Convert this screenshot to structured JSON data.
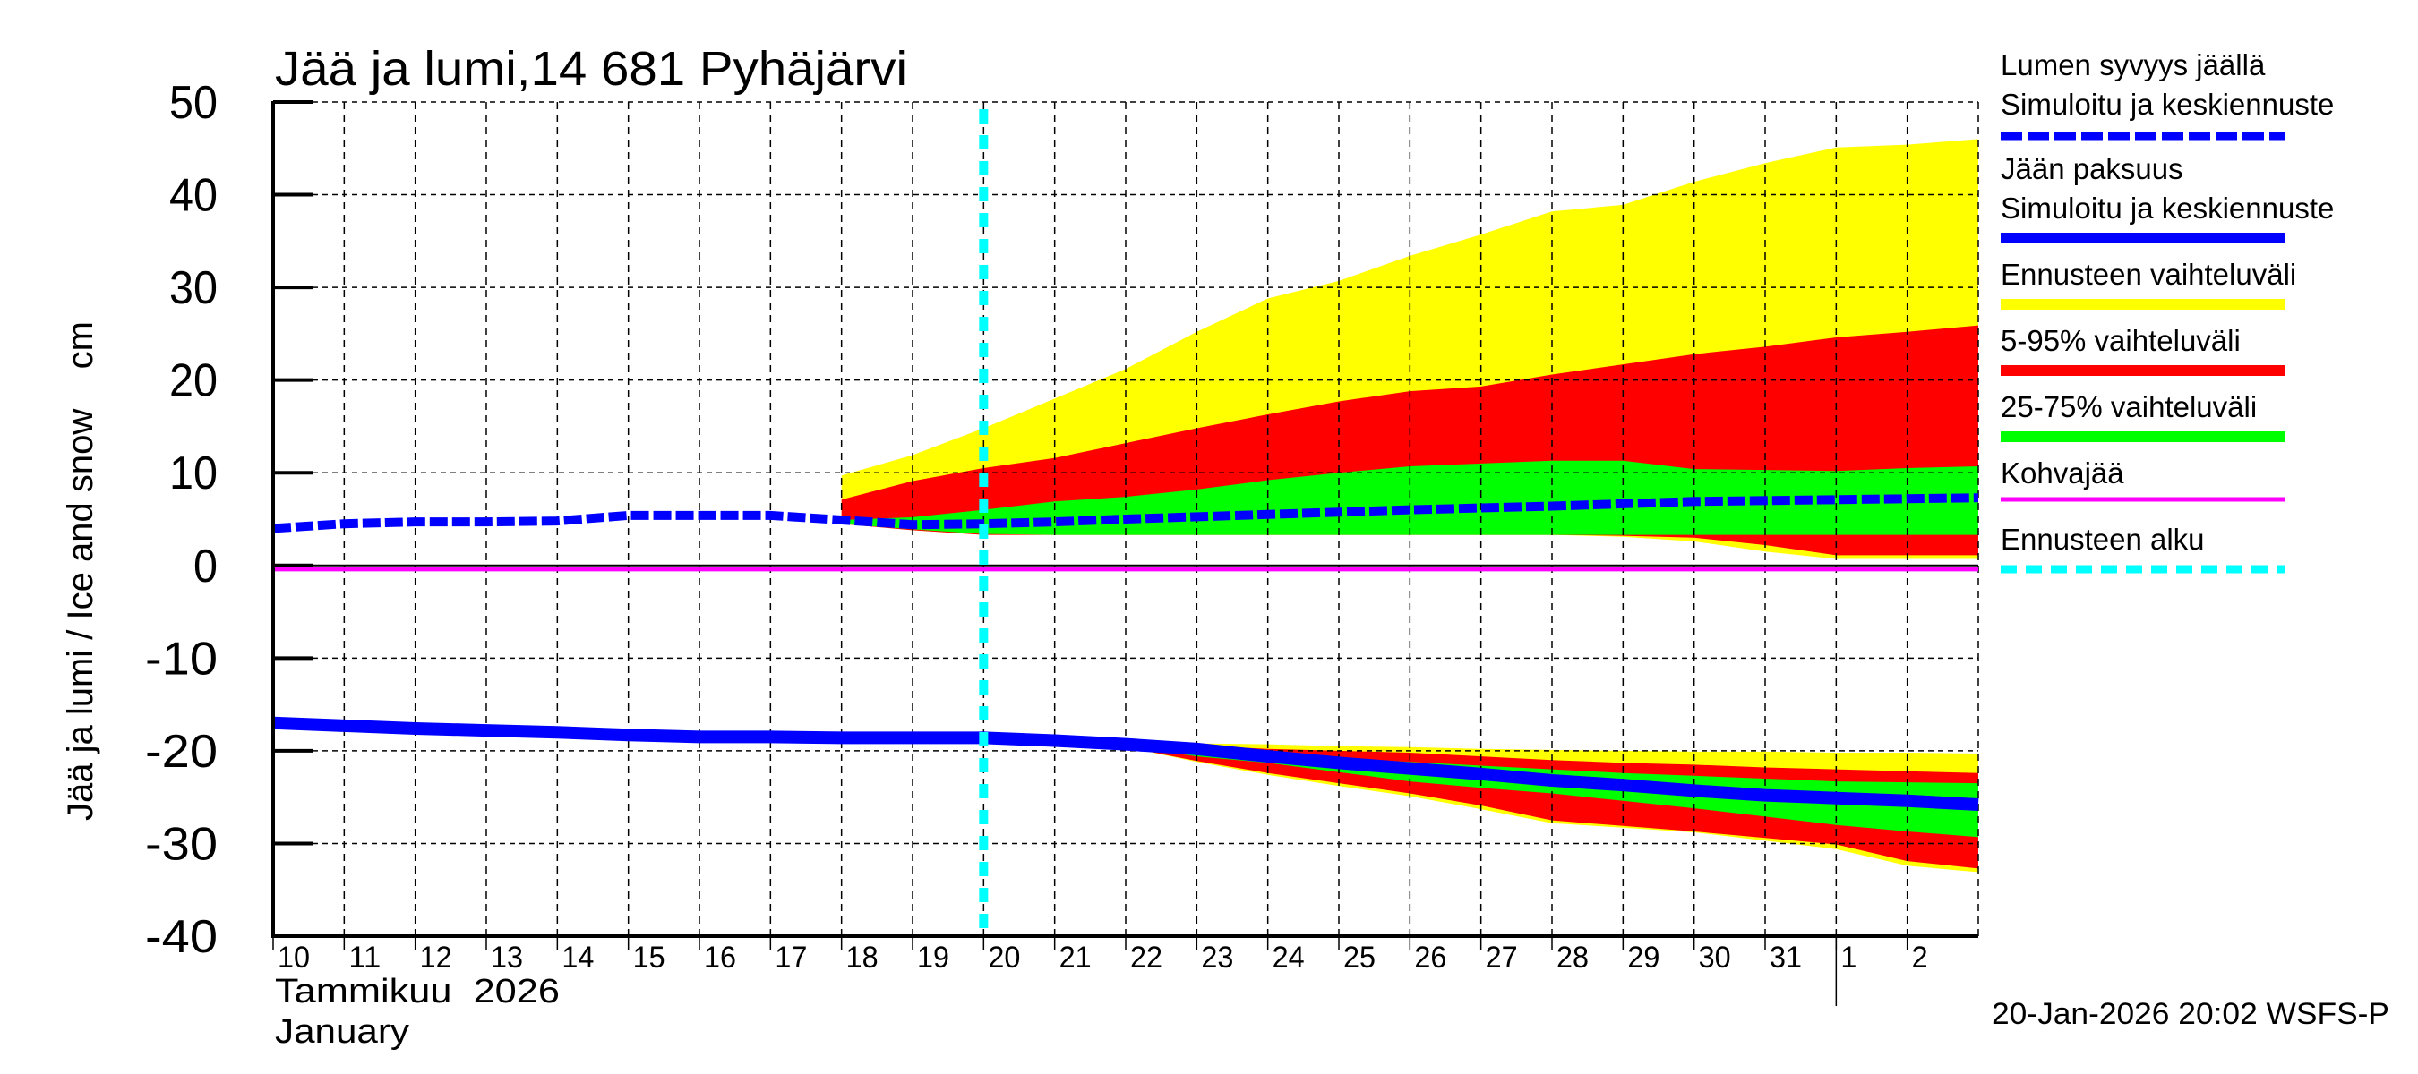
{
  "chart_data": {
    "type": "area",
    "title": "Jää ja lumi,14 681 Pyhäjärvi",
    "ylabel": "Jää ja lumi / Ice and snow    cm",
    "xlabel_line1": "Tammikuu  2026",
    "xlabel_line2": "January",
    "footer": "20-Jan-2026 20:02 WSFS-P",
    "ylim": [
      -40,
      50
    ],
    "yticks": [
      50,
      40,
      30,
      20,
      10,
      0,
      -10,
      -20,
      -30,
      -40
    ],
    "xlim_days": [
      10,
      34
    ],
    "x_unit": "day of January 2026 (33 = Feb 2)",
    "xtick_labels": [
      {
        "day": 10,
        "label": "10"
      },
      {
        "day": 11,
        "label": "11"
      },
      {
        "day": 12,
        "label": "12"
      },
      {
        "day": 13,
        "label": "13"
      },
      {
        "day": 14,
        "label": "14"
      },
      {
        "day": 15,
        "label": "15"
      },
      {
        "day": 16,
        "label": "16"
      },
      {
        "day": 17,
        "label": "17"
      },
      {
        "day": 18,
        "label": "18"
      },
      {
        "day": 19,
        "label": "19"
      },
      {
        "day": 20,
        "label": "20"
      },
      {
        "day": 21,
        "label": "21"
      },
      {
        "day": 22,
        "label": "22"
      },
      {
        "day": 23,
        "label": "23"
      },
      {
        "day": 24,
        "label": "24"
      },
      {
        "day": 25,
        "label": "25"
      },
      {
        "day": 26,
        "label": "26"
      },
      {
        "day": 27,
        "label": "27"
      },
      {
        "day": 28,
        "label": "28"
      },
      {
        "day": 29,
        "label": "29"
      },
      {
        "day": 30,
        "label": "30"
      },
      {
        "day": 31,
        "label": "31"
      },
      {
        "day": 32,
        "label": "1"
      },
      {
        "day": 33,
        "label": "2"
      }
    ],
    "month_separator_day": 32,
    "forecast_start_day": 20,
    "grid": true,
    "legend_position": "right",
    "colors": {
      "snow": "#0000ff",
      "ice": "#0000ff",
      "range_full": "#ffff00",
      "range_5_95": "#ff0000",
      "range_25_75": "#00ff00",
      "slush": "#ff00ff",
      "forecast_start": "#00ffff"
    },
    "snow_depth": {
      "name": "Lumen syvyys jäällä – Simuloitu ja keskiennuste",
      "x": [
        10,
        11,
        12,
        13,
        14,
        15,
        16,
        17,
        18,
        19,
        20,
        21,
        22,
        24,
        26,
        28,
        30,
        32,
        34
      ],
      "y": [
        4.0,
        4.5,
        4.7,
        4.7,
        4.8,
        5.4,
        5.4,
        5.4,
        4.9,
        4.4,
        4.5,
        4.7,
        5.0,
        5.5,
        6.0,
        6.4,
        6.9,
        7.1,
        7.3
      ]
    },
    "snow_bands": {
      "x": [
        18,
        19,
        20,
        21,
        22,
        23,
        24,
        25,
        26,
        27,
        28,
        29,
        30,
        31,
        32,
        33,
        34
      ],
      "full_upper": [
        9.7,
        11.9,
        14.8,
        18.0,
        21.2,
        25.2,
        28.8,
        30.7,
        33.4,
        35.7,
        38.2,
        38.9,
        41.4,
        43.4,
        45.1,
        45.4,
        46.0
      ],
      "p95": [
        7.1,
        9.1,
        10.5,
        11.6,
        13.2,
        14.8,
        16.3,
        17.7,
        18.8,
        19.3,
        20.6,
        21.7,
        22.8,
        23.6,
        24.6,
        25.2,
        25.9
      ],
      "p75": [
        4.9,
        5.2,
        6.0,
        6.9,
        7.4,
        8.2,
        9.2,
        10.0,
        10.7,
        11.0,
        11.3,
        11.3,
        10.4,
        10.3,
        10.2,
        10.5,
        10.7
      ],
      "p25": [
        4.5,
        3.9,
        3.4,
        3.3,
        3.3,
        3.3,
        3.3,
        3.3,
        3.3,
        3.3,
        3.3,
        3.3,
        3.3,
        3.3,
        3.3,
        3.3,
        3.3
      ],
      "p5": [
        4.5,
        3.8,
        3.3,
        3.3,
        3.3,
        3.3,
        3.3,
        3.3,
        3.3,
        3.3,
        3.3,
        3.2,
        3.0,
        2.2,
        1.1,
        1.1,
        1.1
      ],
      "full_lower": [
        4.5,
        3.8,
        3.3,
        3.3,
        3.3,
        3.3,
        3.3,
        3.3,
        3.3,
        3.3,
        3.3,
        3.1,
        2.6,
        1.5,
        0.7,
        0.7,
        0.7
      ]
    },
    "ice_thickness": {
      "name": "Jään paksuus – Simuloitu ja keskiennuste",
      "x": [
        10,
        11,
        12,
        13,
        14,
        15,
        16,
        17,
        18,
        19,
        20,
        21,
        22,
        23,
        24,
        25,
        26,
        27,
        28,
        29,
        30,
        31,
        32,
        33,
        34
      ],
      "y": [
        -17.0,
        -17.3,
        -17.6,
        -17.8,
        -18.0,
        -18.3,
        -18.5,
        -18.5,
        -18.6,
        -18.6,
        -18.6,
        -18.9,
        -19.3,
        -19.8,
        -20.6,
        -21.3,
        -21.9,
        -22.5,
        -23.2,
        -23.7,
        -24.3,
        -24.8,
        -25.1,
        -25.4,
        -25.8
      ]
    },
    "ice_bands": {
      "x": [
        22,
        23,
        24,
        25,
        26,
        27,
        28,
        29,
        30,
        31,
        32,
        33,
        34
      ],
      "full_upper": [
        -19.0,
        -19.2,
        -19.3,
        -19.5,
        -19.6,
        -19.8,
        -19.9,
        -20.0,
        -20.1,
        -20.1,
        -20.2,
        -20.2,
        -20.3
      ],
      "p95": [
        -19.1,
        -19.4,
        -19.8,
        -20.0,
        -20.2,
        -20.6,
        -21.0,
        -21.3,
        -21.5,
        -21.8,
        -22.0,
        -22.2,
        -22.4
      ],
      "p75": [
        -19.2,
        -19.6,
        -20.4,
        -20.8,
        -21.2,
        -21.6,
        -22.0,
        -22.4,
        -22.7,
        -23.0,
        -23.3,
        -23.4,
        -23.5
      ],
      "p25": [
        -19.5,
        -20.6,
        -21.3,
        -22.3,
        -23.3,
        -24.0,
        -24.6,
        -25.4,
        -26.2,
        -27.1,
        -28.0,
        -28.7,
        -29.3
      ],
      "p5": [
        -19.6,
        -21.1,
        -22.4,
        -23.5,
        -24.6,
        -25.9,
        -27.5,
        -28.1,
        -28.7,
        -29.4,
        -30.1,
        -31.9,
        -32.7
      ],
      "full_lower": [
        -19.6,
        -21.2,
        -22.6,
        -23.8,
        -24.9,
        -26.3,
        -27.8,
        -28.3,
        -28.8,
        -29.7,
        -30.6,
        -32.4,
        -33.1
      ]
    },
    "slush_ice": {
      "name": "Kohvajää",
      "value": -0.4
    }
  },
  "legend": {
    "items": [
      {
        "line1": "Lumen syvyys jäällä",
        "line2": "Simuloitu ja keskiennuste",
        "color": "#0000ff",
        "style": "dashed"
      },
      {
        "line1": "Jään paksuus",
        "line2": "Simuloitu ja keskiennuste",
        "color": "#0000ff",
        "style": "solid"
      },
      {
        "line1": "Ennusteen vaihteluväli",
        "color": "#ffff00",
        "style": "solid"
      },
      {
        "line1": "5-95% vaihteluväli",
        "color": "#ff0000",
        "style": "solid"
      },
      {
        "line1": "25-75% vaihteluväli",
        "color": "#00ff00",
        "style": "solid"
      },
      {
        "line1": "Kohvajää",
        "color": "#ff00ff",
        "style": "thin"
      },
      {
        "line1": "Ennusteen alku",
        "color": "#00ffff",
        "style": "dotted"
      }
    ]
  }
}
